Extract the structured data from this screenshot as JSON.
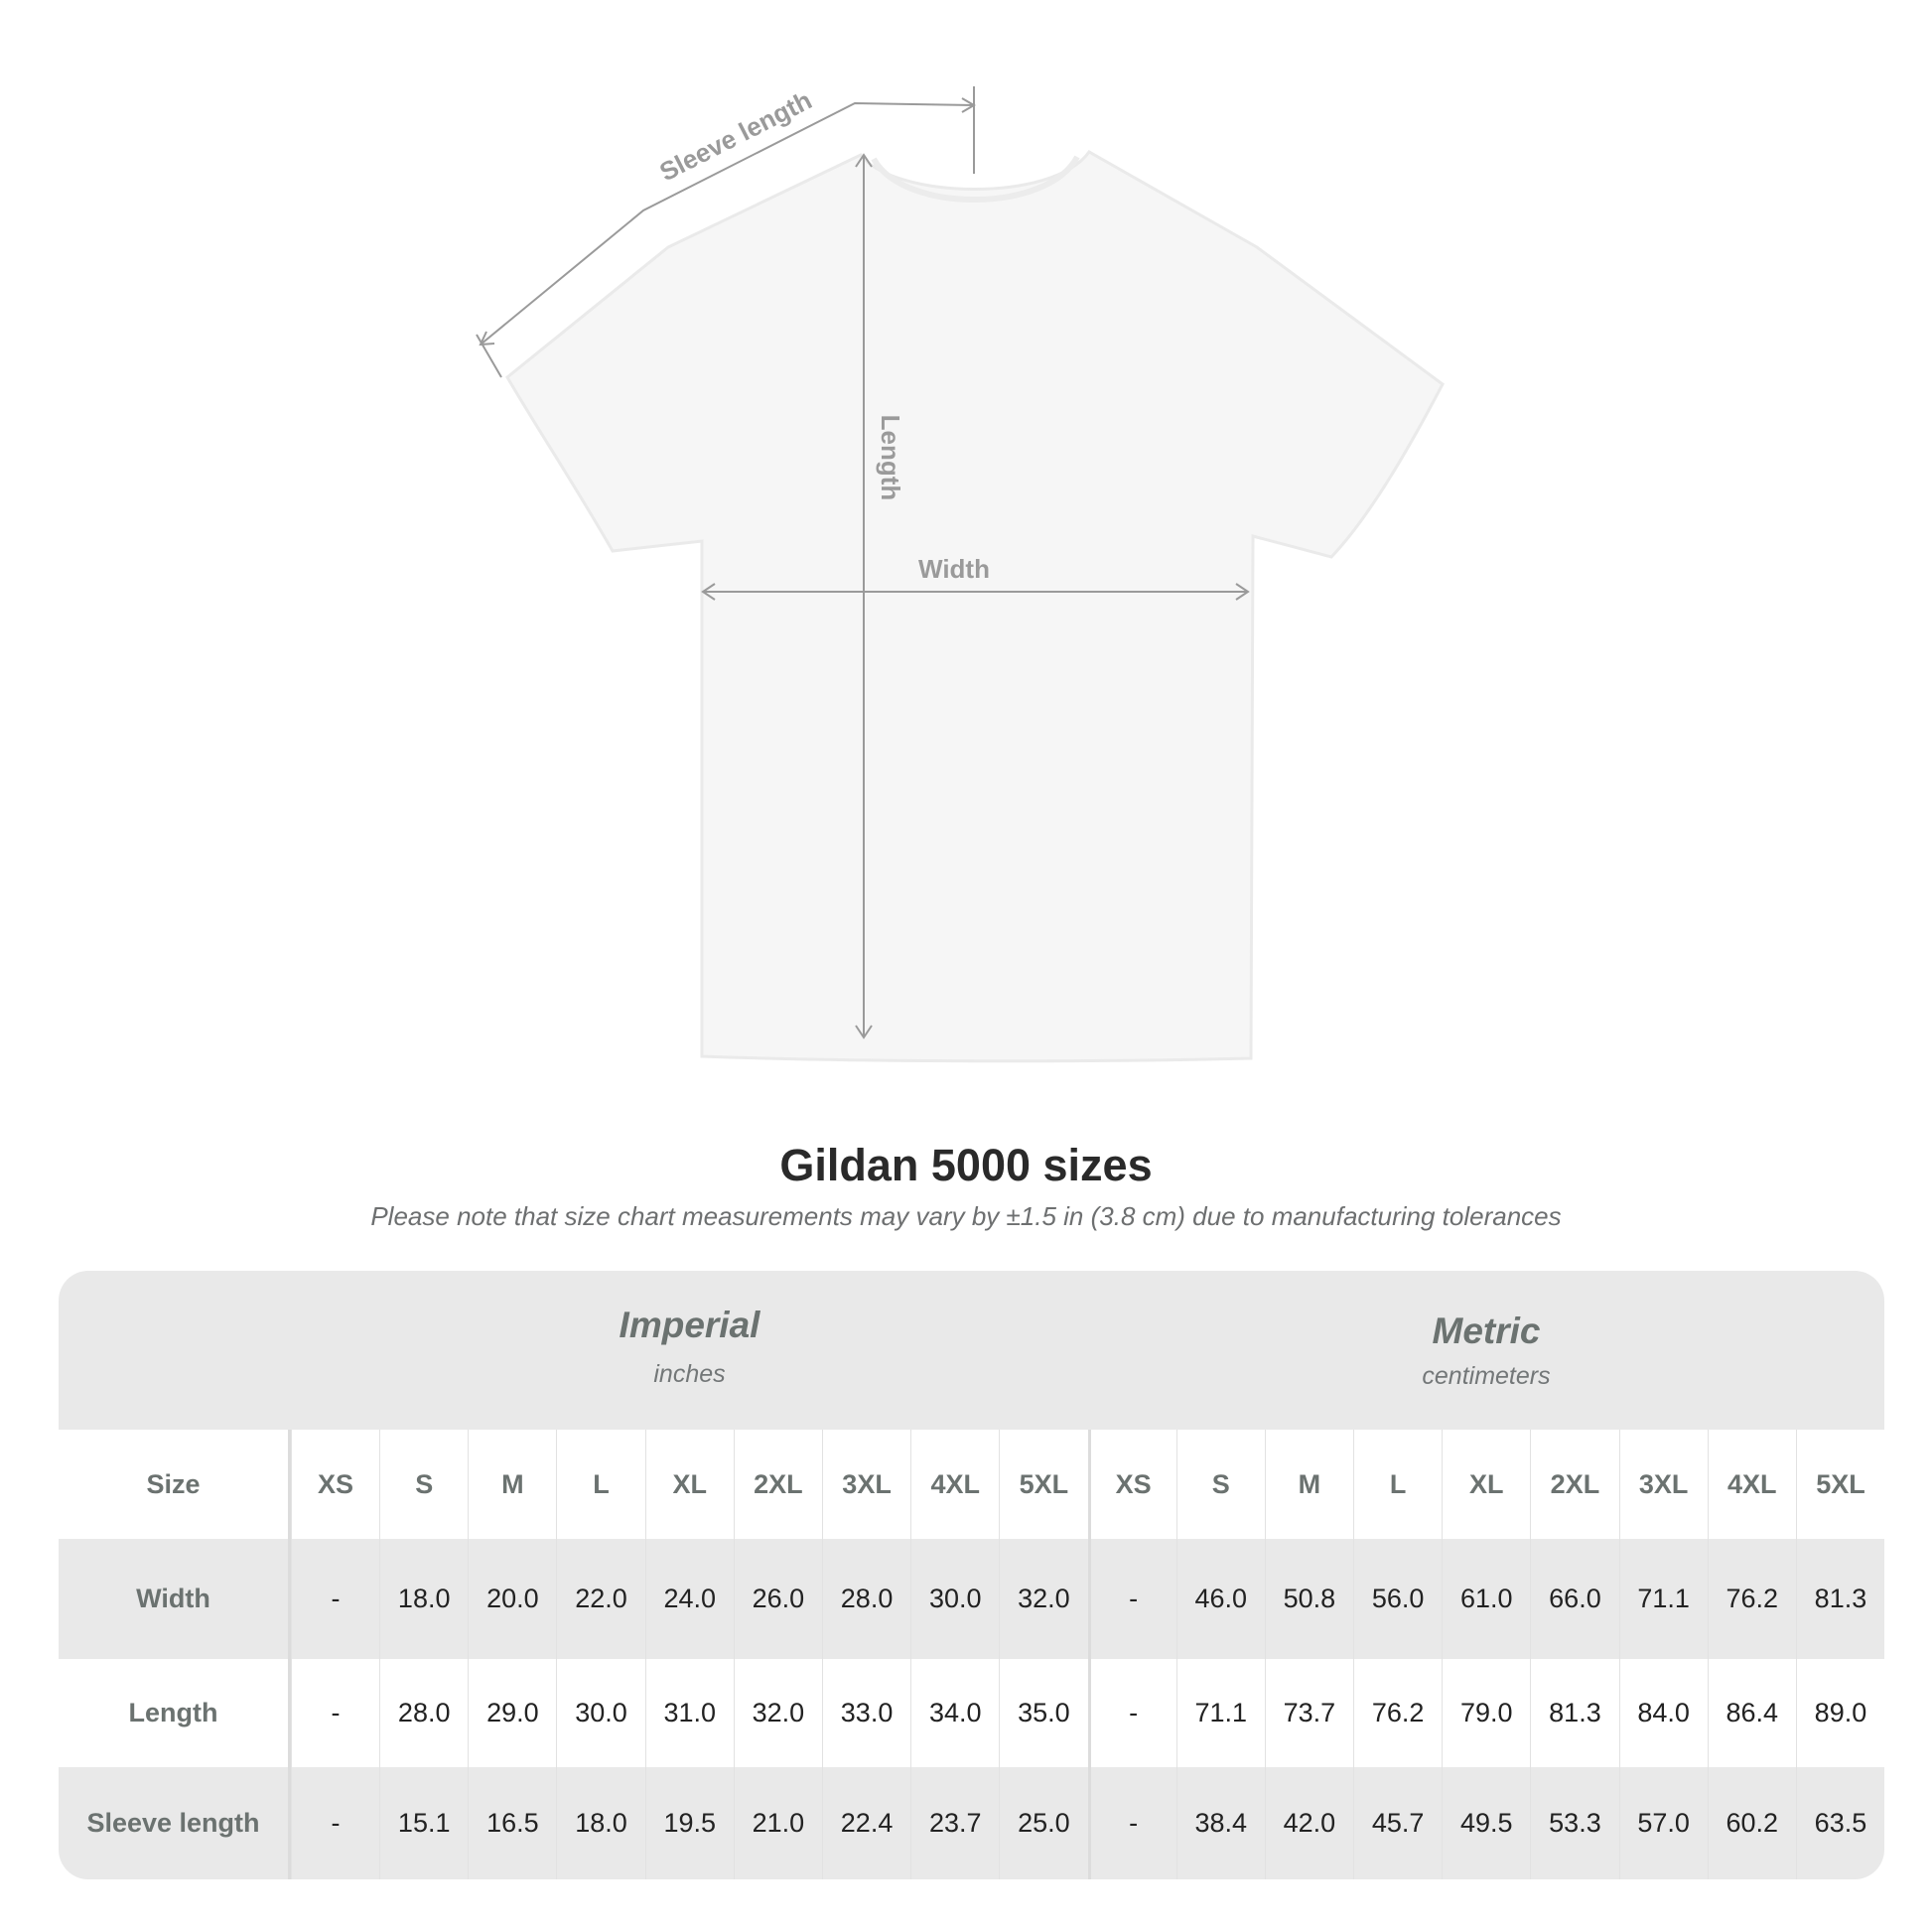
{
  "diagram": {
    "labels": {
      "sleeve": "Sleeve length",
      "length": "Length",
      "width": "Width"
    }
  },
  "title": "Gildan 5000 sizes",
  "subtitle": "Please note that size chart measurements may vary by ±1.5 in (3.8 cm) due to manufacturing tolerances",
  "table": {
    "imperial": {
      "name": "Imperial",
      "unit": "inches"
    },
    "metric": {
      "name": "Metric",
      "unit": "centimeters"
    },
    "size_label": "Size",
    "sizes": [
      "XS",
      "S",
      "M",
      "L",
      "XL",
      "2XL",
      "3XL",
      "4XL",
      "5XL"
    ],
    "rows": [
      {
        "label": "Width",
        "imperial": [
          "-",
          "18.0",
          "20.0",
          "22.0",
          "24.0",
          "26.0",
          "28.0",
          "30.0",
          "32.0"
        ],
        "metric": [
          "-",
          "46.0",
          "50.8",
          "56.0",
          "61.0",
          "66.0",
          "71.1",
          "76.2",
          "81.3"
        ]
      },
      {
        "label": "Length",
        "imperial": [
          "-",
          "28.0",
          "29.0",
          "30.0",
          "31.0",
          "32.0",
          "33.0",
          "34.0",
          "35.0"
        ],
        "metric": [
          "-",
          "71.1",
          "73.7",
          "76.2",
          "79.0",
          "81.3",
          "84.0",
          "86.4",
          "89.0"
        ]
      },
      {
        "label": "Sleeve length",
        "imperial": [
          "-",
          "15.1",
          "16.5",
          "18.0",
          "19.5",
          "21.0",
          "22.4",
          "23.7",
          "25.0"
        ],
        "metric": [
          "-",
          "38.4",
          "42.0",
          "45.7",
          "49.5",
          "53.3",
          "57.0",
          "60.2",
          "63.5"
        ]
      }
    ]
  },
  "colors": {
    "table_bg": "#e9e9e9",
    "label_text": "#6b7270",
    "value_text": "#222222",
    "measure_line": "#9a9a9a"
  }
}
